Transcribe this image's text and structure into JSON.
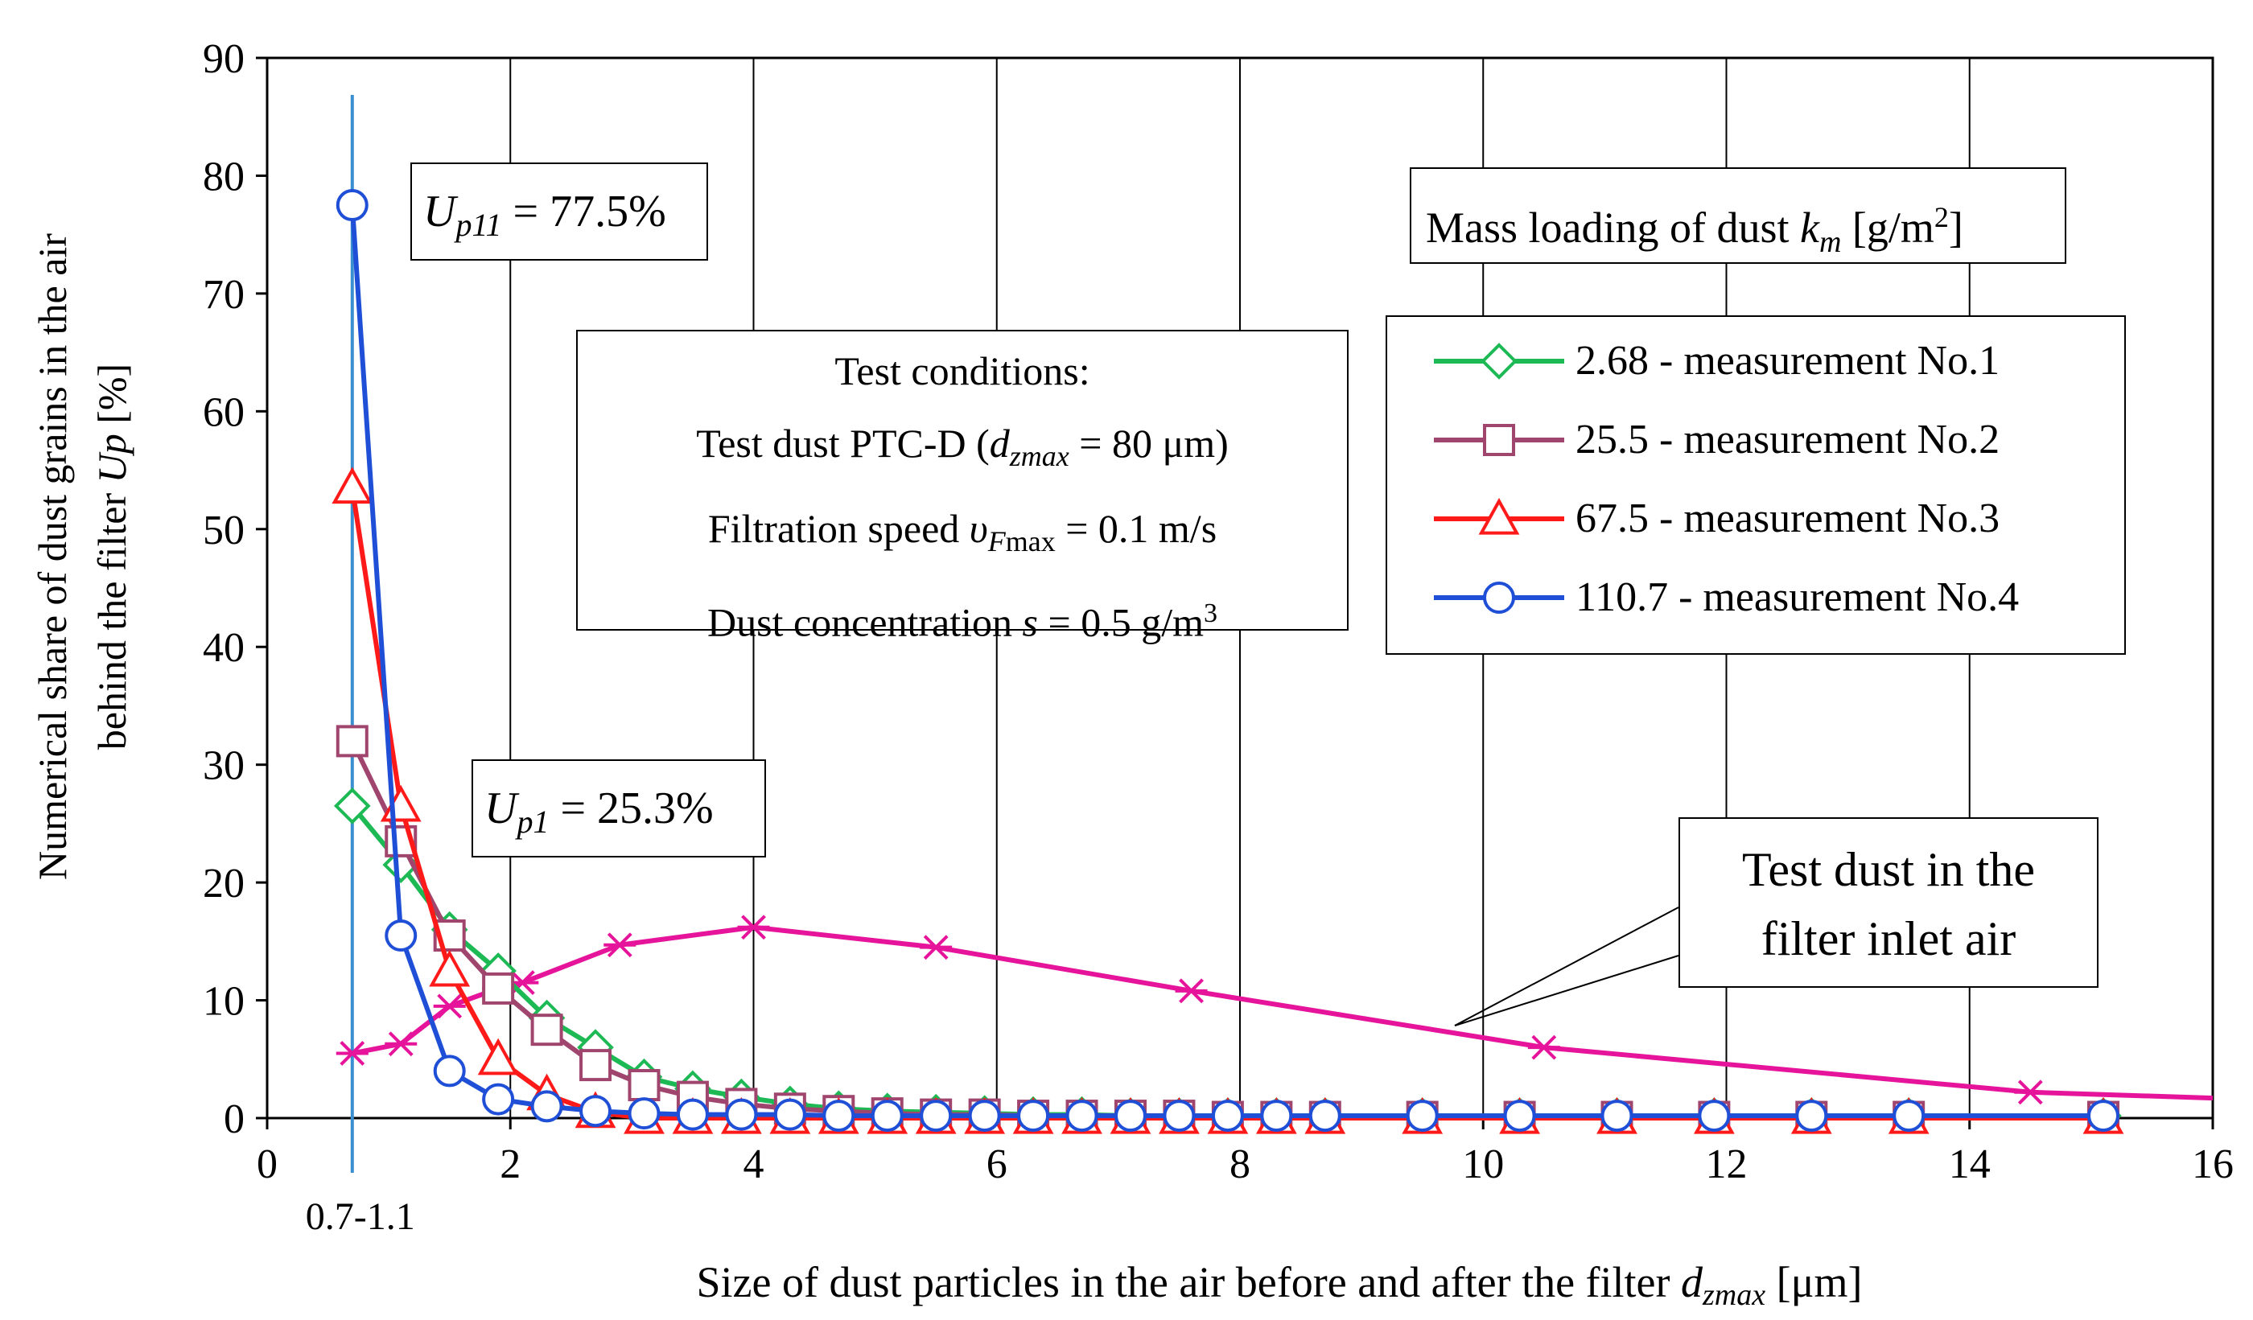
{
  "chart_data": {
    "type": "line",
    "xlabel": "Size of dust particles in the air before and after the filter dzmax [μm]",
    "xlabel_main": "Size of dust particles in the air before and after the filter ",
    "xlabel_var": "d",
    "xlabel_sub": "zmax",
    "xlabel_unit": " [μm]",
    "ylabel": "Numerical share of dust grains in the air behind the filter Up [%]",
    "ylabel_line1": "Numerical share of dust grains in the air",
    "ylabel_line2_main": "behind the filter ",
    "ylabel_line2_var": "Up",
    "ylabel_line2_unit": " [%]",
    "xlim": [
      0,
      16
    ],
    "ylim": [
      0,
      90
    ],
    "x_ticks": [
      0,
      2,
      4,
      6,
      8,
      10,
      12,
      14,
      16
    ],
    "y_ticks": [
      0,
      10,
      20,
      30,
      40,
      50,
      60,
      70,
      80,
      90
    ],
    "grid": "vertical-major",
    "vertical_marker": {
      "x": 0.7,
      "label": "0.7-1.1"
    },
    "series": [
      {
        "name": "2.68 - measurement No.1",
        "color": "#1db954",
        "marker": "diamond",
        "x": [
          0.7,
          1.1,
          1.5,
          1.9,
          2.3,
          2.7,
          3.1,
          3.5,
          3.9,
          4.3,
          4.7,
          5.1,
          5.5,
          5.9,
          6.3,
          6.7,
          7.1,
          7.5,
          7.9,
          8.3,
          8.7,
          9.5,
          10.3,
          11.1,
          11.9,
          12.7,
          13.5,
          15.1
        ],
        "y": [
          26.5,
          21.5,
          16,
          12.5,
          8.5,
          6,
          3.5,
          2.5,
          1.8,
          1.2,
          0.8,
          0.6,
          0.5,
          0.4,
          0.3,
          0.3,
          0.2,
          0.2,
          0.2,
          0.2,
          0.2,
          0.2,
          0.2,
          0.2,
          0.2,
          0.2,
          0.2,
          0.2
        ]
      },
      {
        "name": "25.5 - measurement No.2",
        "color": "#a0456e",
        "marker": "square",
        "x": [
          0.7,
          1.1,
          1.5,
          1.9,
          2.3,
          2.7,
          3.1,
          3.5,
          3.9,
          4.3,
          4.7,
          5.1,
          5.5,
          5.9,
          6.3,
          6.7,
          7.1,
          7.5,
          7.9,
          8.3,
          8.7,
          9.5,
          10.3,
          11.1,
          11.9,
          12.7,
          13.5,
          15.1
        ],
        "y": [
          32,
          23.5,
          15.5,
          11,
          7.5,
          4.5,
          2.8,
          1.8,
          1.2,
          0.8,
          0.6,
          0.4,
          0.3,
          0.3,
          0.2,
          0.2,
          0.2,
          0.2,
          0.1,
          0.1,
          0.1,
          0.1,
          0.1,
          0.1,
          0.1,
          0.1,
          0.1,
          0.1
        ]
      },
      {
        "name": "67.5 - measurement No.3",
        "color": "#ff1a1a",
        "marker": "triangle",
        "x": [
          0.7,
          1.1,
          1.5,
          1.9,
          2.3,
          2.7,
          3.1,
          3.5,
          3.9,
          4.3,
          4.7,
          5.1,
          5.5,
          5.9,
          6.3,
          6.7,
          7.1,
          7.5,
          7.9,
          8.3,
          8.7,
          9.5,
          10.3,
          11.1,
          11.9,
          12.7,
          13.5,
          15.1
        ],
        "y": [
          53.5,
          26.5,
          12.5,
          5,
          2,
          0.5,
          0,
          0,
          0,
          0,
          0,
          0,
          0,
          0,
          0,
          0,
          0,
          0,
          0,
          0,
          0,
          0,
          0,
          0,
          0,
          0,
          0,
          0
        ]
      },
      {
        "name": "110.7 - measurement No.4",
        "color": "#1f4fd6",
        "marker": "circle",
        "x": [
          0.7,
          1.1,
          1.5,
          1.9,
          2.3,
          2.7,
          3.1,
          3.5,
          3.9,
          4.3,
          4.7,
          5.1,
          5.5,
          5.9,
          6.3,
          6.7,
          7.1,
          7.5,
          7.9,
          8.3,
          8.7,
          9.5,
          10.3,
          11.1,
          11.9,
          12.7,
          13.5,
          15.1
        ],
        "y": [
          77.5,
          15.5,
          4,
          1.6,
          1,
          0.6,
          0.4,
          0.3,
          0.3,
          0.3,
          0.2,
          0.2,
          0.2,
          0.2,
          0.2,
          0.2,
          0.2,
          0.2,
          0.2,
          0.2,
          0.2,
          0.2,
          0.2,
          0.2,
          0.2,
          0.2,
          0.2,
          0.2
        ]
      },
      {
        "name": "Test dust in the filter inlet air",
        "color": "#e6149b",
        "marker": "star",
        "x": [
          0.7,
          1.1,
          1.5,
          1.9,
          2.1,
          2.9,
          4,
          5.5,
          7.6,
          10.5,
          14.5,
          16
        ],
        "y": [
          5.5,
          6.3,
          9.5,
          11,
          11.5,
          14.7,
          16.2,
          14.5,
          10.8,
          6,
          2.2,
          1.7
        ],
        "marker_x": [
          0.7,
          1.1,
          1.5,
          1.9,
          2.1,
          2.9,
          4,
          5.5,
          7.6,
          10.5,
          14.5
        ]
      }
    ],
    "annotations": {
      "up11": {
        "var": "U",
        "sub": "p11",
        "value": " = 77.5%"
      },
      "up1": {
        "var": "U",
        "sub": "p1",
        "value": " = 25.3%"
      },
      "conditions": {
        "line1": "Test conditions:",
        "line2_pre": "Test dust PTC-D (",
        "line2_var": "d",
        "line2_sub": "zmax",
        "line2_post": " = 80 μm)",
        "line3_pre": "Filtration speed  ",
        "line3_var": "υ",
        "line3_sub_i": "F",
        "line3_sub": "max",
        "line3_post": " = 0.1 m/s",
        "line4_pre": "Dust concentration ",
        "line4_var": "s",
        "line4_post": " = 0.5 g/m",
        "line4_sup": "3"
      },
      "inlet": {
        "line1": "Test dust in the",
        "line2": "filter inlet air"
      }
    },
    "legend": {
      "title_pre": "Mass loading of dust ",
      "title_var": "k",
      "title_sub": "m",
      "title_unit": " [g/m",
      "title_sup": "2",
      "title_end": "]",
      "placement": "right"
    }
  }
}
